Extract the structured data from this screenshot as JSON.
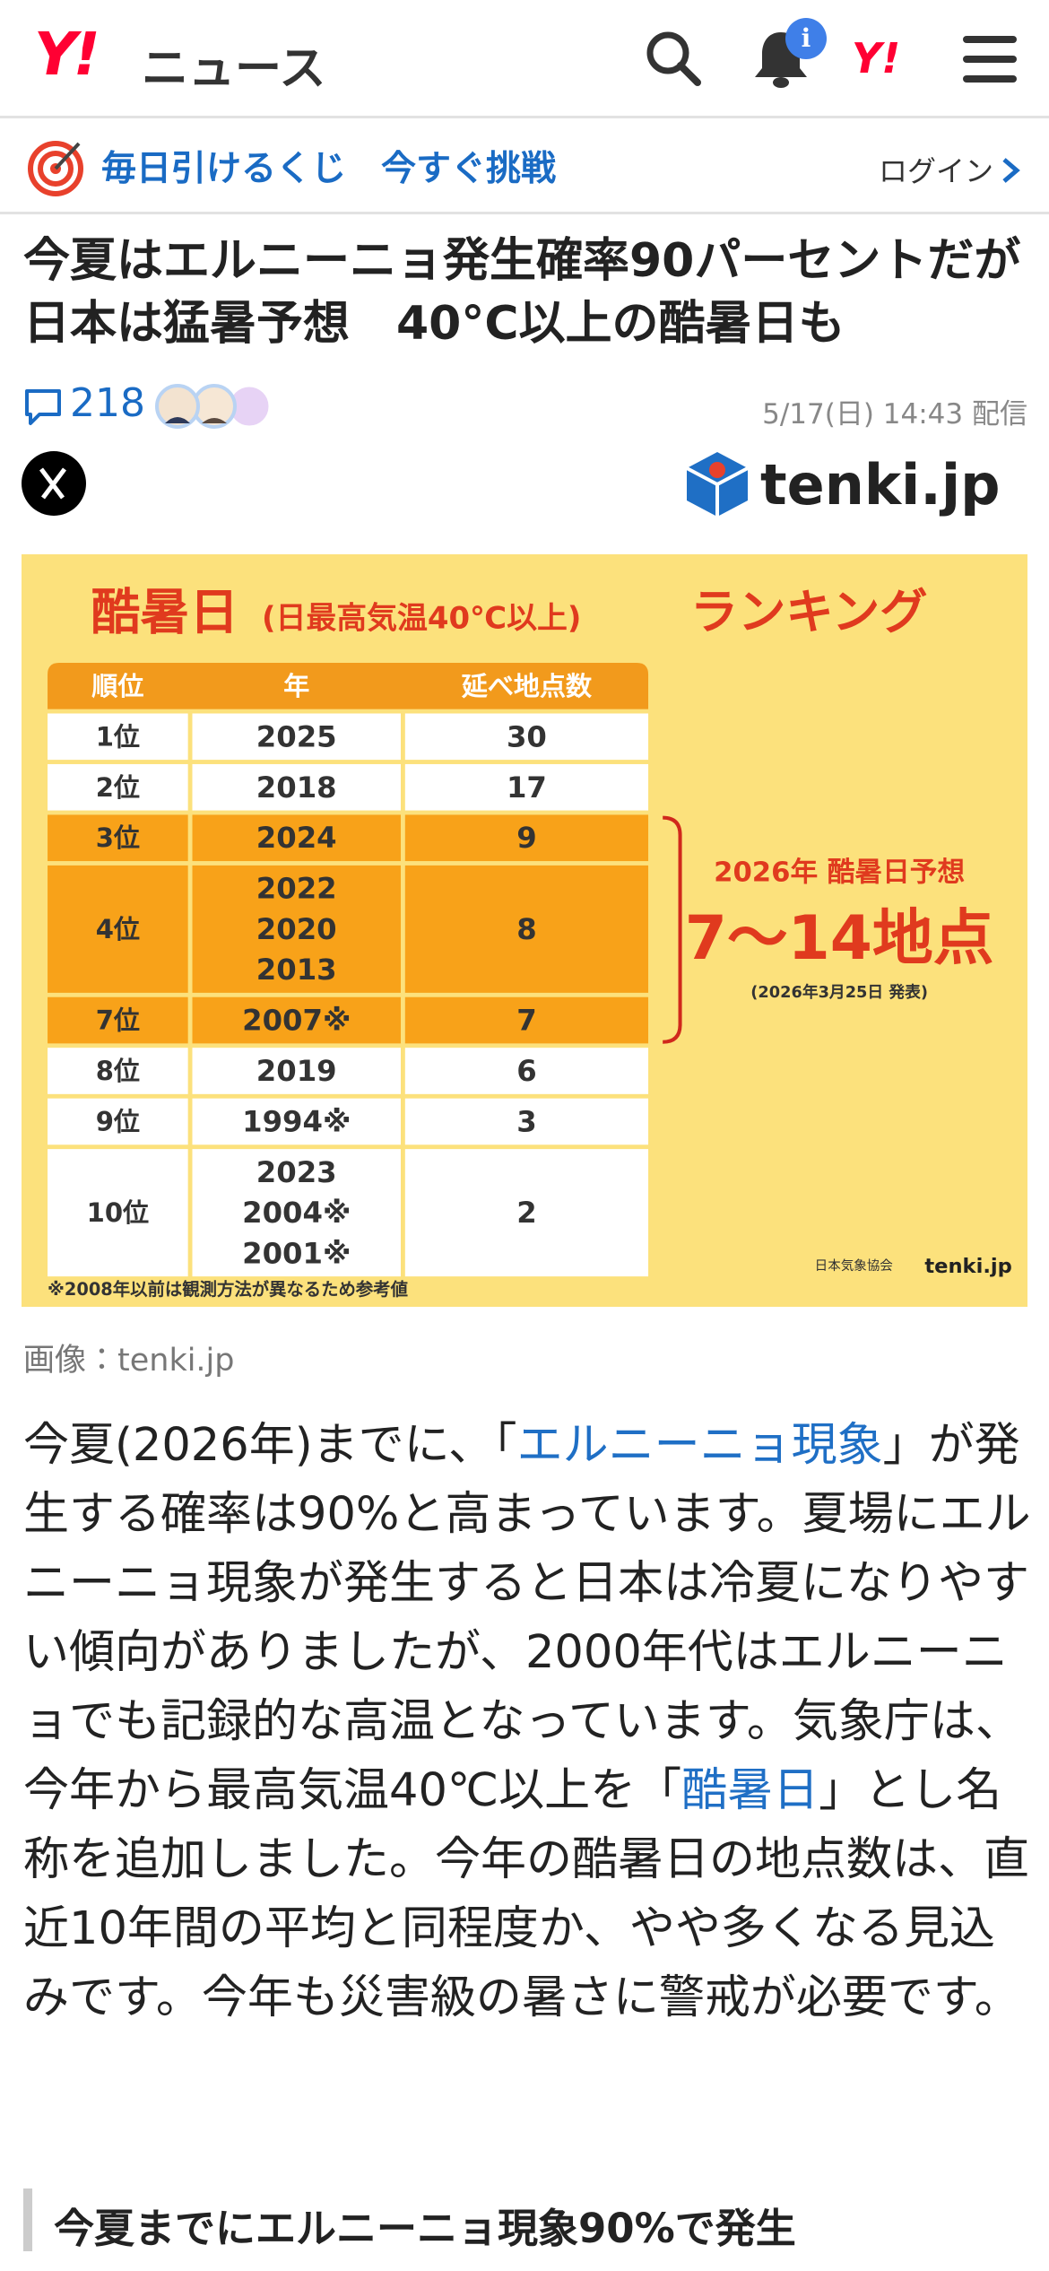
{
  "header": {
    "logo_mark": "Y!",
    "logo_text": "ニュース",
    "notification_badge": "i",
    "yahoo_icon": "Y!"
  },
  "promo": {
    "text": "毎日引けるくじ　今すぐ挑戦",
    "login": "ログイン"
  },
  "article": {
    "title": "今夏はエルニーニョ発生確率90パーセントだが日本は猛暑予想　40°C以上の酷暑日も",
    "comment_count": "218",
    "published": "5/17(日) 14:43 配信",
    "source_logo": "tenki.jp",
    "image": {
      "title": "酷暑日",
      "title_note": "(日最高気温40℃以上)",
      "title_suffix": "ランキング",
      "columns": [
        "順位",
        "年",
        "延べ地点数"
      ],
      "rows": [
        {
          "rank": "1位",
          "years": [
            "2025"
          ],
          "count": 30,
          "highlight": false
        },
        {
          "rank": "2位",
          "years": [
            "2018"
          ],
          "count": 17,
          "highlight": false
        },
        {
          "rank": "3位",
          "years": [
            "2024"
          ],
          "count": 9,
          "highlight": true
        },
        {
          "rank": "4位",
          "years": [
            "2022",
            "2020",
            "2013"
          ],
          "count": 8,
          "highlight": true
        },
        {
          "rank": "7位",
          "years": [
            "2007※"
          ],
          "count": 7,
          "highlight": true
        },
        {
          "rank": "8位",
          "years": [
            "2019"
          ],
          "count": 6,
          "highlight": false
        },
        {
          "rank": "9位",
          "years": [
            "1994※"
          ],
          "count": 3,
          "highlight": false
        },
        {
          "rank": "10位",
          "years": [
            "2023",
            "2004※",
            "2001※"
          ],
          "count": 2,
          "highlight": false
        }
      ],
      "forecast": {
        "heading": "2026年 酷暑日予想",
        "range": "7〜14地点",
        "note": "(2026年3月25日 発表)"
      },
      "footnote": "※2008年以前は観測方法が異なるため参考値",
      "credit_org": "日本気象協会",
      "credit_logo": "tenki.jp"
    },
    "image_caption": "画像：tenki.jp",
    "body": [
      {
        "text": "今夏(2026年)までに、「",
        "link": false
      },
      {
        "text": "エルニーニョ現象",
        "link": true
      },
      {
        "text": "」が発生する確率は90%と高まっています。夏場にエルニーニョ現象が発生すると日本は冷夏になりやすい傾向がありましたが、2000年代はエルニーニョでも記録的な高温となっています。気象庁は、今年から最高気温40℃以上を「",
        "link": false
      },
      {
        "text": "酷暑日",
        "link": true
      },
      {
        "text": "」とし名称を追加しました。今年の酷暑日の地点数は、直近10年間の平均と同程度か、やや多くなる見込みです。今年も災害級の暑さに警戒が必要です。",
        "link": false
      }
    ],
    "section_heading": "今夏までにエルニーニョ現象90%で発生"
  }
}
